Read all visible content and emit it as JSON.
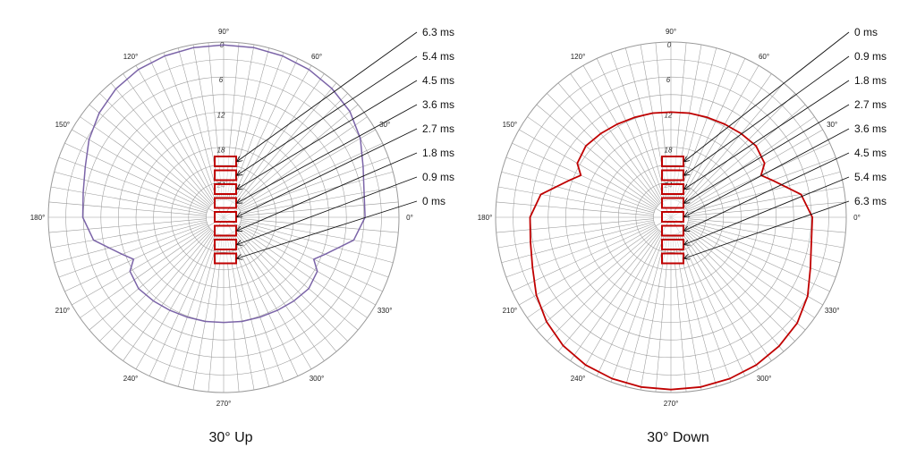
{
  "plots": [
    {
      "id": "up",
      "caption": "30° Up",
      "pattern_color": "#7b64a8",
      "delay_labels": [
        "6.3 ms",
        "5.4 ms",
        "4.5 ms",
        "3.6 ms",
        "2.7 ms",
        "1.8 ms",
        "0.9 ms",
        "0 ms"
      ],
      "pattern_db": [
        {
          "angle": 0,
          "db": -5.8
        },
        {
          "angle": 10,
          "db": -5.6
        },
        {
          "angle": 20,
          "db": -4.6
        },
        {
          "angle": 30,
          "db": -3.0
        },
        {
          "angle": 40,
          "db": -1.8
        },
        {
          "angle": 50,
          "db": -1.2
        },
        {
          "angle": 60,
          "db": -0.8
        },
        {
          "angle": 70,
          "db": -0.6
        },
        {
          "angle": 80,
          "db": -0.5
        },
        {
          "angle": 90,
          "db": -0.5
        },
        {
          "angle": 100,
          "db": -0.5
        },
        {
          "angle": 110,
          "db": -0.6
        },
        {
          "angle": 120,
          "db": -0.8
        },
        {
          "angle": 130,
          "db": -1.3
        },
        {
          "angle": 140,
          "db": -2.2
        },
        {
          "angle": 150,
          "db": -3.4
        },
        {
          "angle": 160,
          "db": -4.8
        },
        {
          "angle": 170,
          "db": -5.6
        },
        {
          "angle": 180,
          "db": -5.9
        },
        {
          "angle": 190,
          "db": -7.4
        },
        {
          "angle": 200,
          "db": -11.5
        },
        {
          "angle": 205,
          "db": -13.0
        },
        {
          "angle": 210,
          "db": -11.5
        },
        {
          "angle": 220,
          "db": -11.0
        },
        {
          "angle": 230,
          "db": -11.3
        },
        {
          "angle": 240,
          "db": -11.6
        },
        {
          "angle": 250,
          "db": -11.8
        },
        {
          "angle": 260,
          "db": -11.9
        },
        {
          "angle": 270,
          "db": -12.0
        },
        {
          "angle": 280,
          "db": -11.9
        },
        {
          "angle": 290,
          "db": -11.8
        },
        {
          "angle": 300,
          "db": -11.6
        },
        {
          "angle": 310,
          "db": -11.3
        },
        {
          "angle": 320,
          "db": -11.0
        },
        {
          "angle": 330,
          "db": -11.5
        },
        {
          "angle": 335,
          "db": -13.0
        },
        {
          "angle": 340,
          "db": -11.5
        },
        {
          "angle": 350,
          "db": -7.4
        },
        {
          "angle": 360,
          "db": -5.8
        }
      ]
    },
    {
      "id": "down",
      "caption": "30° Down",
      "pattern_color": "#c00000",
      "delay_labels": [
        "0 ms",
        "0.9 ms",
        "1.8 ms",
        "2.7 ms",
        "3.6 ms",
        "4.5 ms",
        "5.4 ms",
        "6.3 ms"
      ],
      "pattern_db": [
        {
          "angle": 0,
          "db": -5.8
        },
        {
          "angle": 10,
          "db": -7.4
        },
        {
          "angle": 20,
          "db": -11.5
        },
        {
          "angle": 25,
          "db": -13.0
        },
        {
          "angle": 30,
          "db": -11.5
        },
        {
          "angle": 40,
          "db": -11.0
        },
        {
          "angle": 50,
          "db": -11.3
        },
        {
          "angle": 60,
          "db": -11.6
        },
        {
          "angle": 70,
          "db": -11.8
        },
        {
          "angle": 80,
          "db": -11.9
        },
        {
          "angle": 90,
          "db": -12.0
        },
        {
          "angle": 100,
          "db": -11.9
        },
        {
          "angle": 110,
          "db": -11.8
        },
        {
          "angle": 120,
          "db": -11.6
        },
        {
          "angle": 130,
          "db": -11.3
        },
        {
          "angle": 140,
          "db": -11.0
        },
        {
          "angle": 150,
          "db": -11.5
        },
        {
          "angle": 155,
          "db": -13.0
        },
        {
          "angle": 160,
          "db": -11.5
        },
        {
          "angle": 170,
          "db": -7.4
        },
        {
          "angle": 180,
          "db": -5.9
        },
        {
          "angle": 190,
          "db": -5.6
        },
        {
          "angle": 200,
          "db": -4.8
        },
        {
          "angle": 210,
          "db": -3.4
        },
        {
          "angle": 220,
          "db": -2.2
        },
        {
          "angle": 230,
          "db": -1.3
        },
        {
          "angle": 240,
          "db": -0.8
        },
        {
          "angle": 250,
          "db": -0.6
        },
        {
          "angle": 260,
          "db": -0.5
        },
        {
          "angle": 270,
          "db": -0.5
        },
        {
          "angle": 280,
          "db": -0.5
        },
        {
          "angle": 290,
          "db": -0.6
        },
        {
          "angle": 300,
          "db": -0.8
        },
        {
          "angle": 310,
          "db": -1.2
        },
        {
          "angle": 320,
          "db": -1.8
        },
        {
          "angle": 330,
          "db": -3.0
        },
        {
          "angle": 340,
          "db": -4.6
        },
        {
          "angle": 350,
          "db": -5.6
        },
        {
          "angle": 360,
          "db": -5.8
        }
      ]
    }
  ],
  "angle_labels": [
    "0°",
    "30°",
    "60°",
    "90°",
    "120°",
    "150°",
    "180°",
    "210°",
    "240°",
    "270°",
    "300°",
    "330°"
  ],
  "ring_labels": [
    "0",
    "6",
    "12",
    "18",
    "24"
  ],
  "db_range": [
    -30,
    0
  ],
  "grid": {
    "ring_step_db": 3,
    "spoke_step_deg": 5
  },
  "colors": {
    "grid": "#9a9a9a",
    "speaker": "#c00000",
    "arrow": "#111111"
  }
}
